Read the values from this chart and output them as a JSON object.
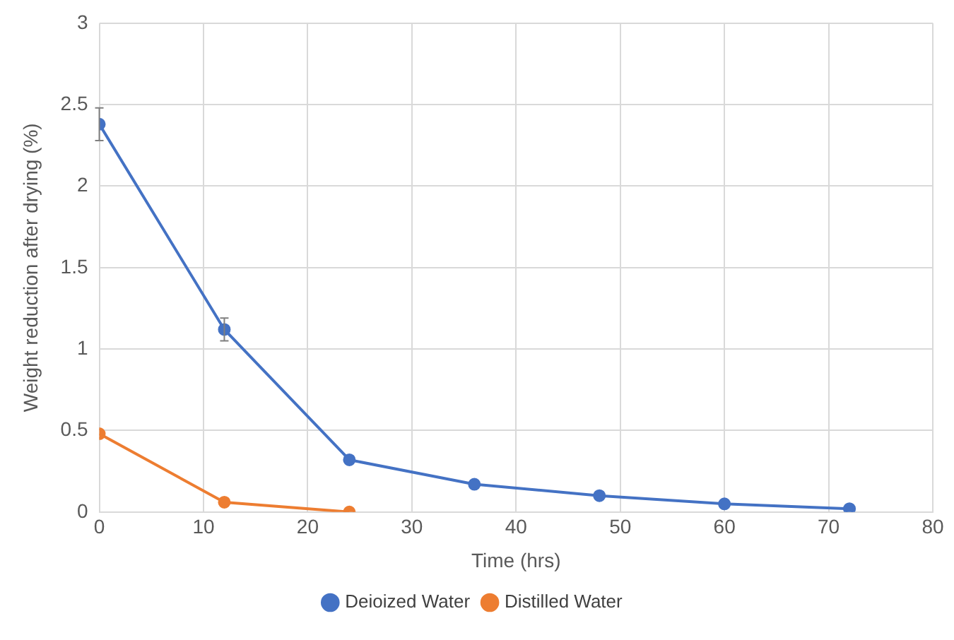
{
  "chart_data": {
    "type": "line",
    "xlabel": "Time (hrs)",
    "ylabel": "Weight reduction after drying (%)",
    "x": [
      0,
      12,
      24,
      36,
      48,
      60,
      72
    ],
    "series": [
      {
        "name": "Deioized Water",
        "color": "#4472c4",
        "values": [
          2.38,
          1.12,
          0.32,
          0.17,
          0.1,
          0.05,
          0.02
        ],
        "errors": [
          0.1,
          0.07,
          null,
          null,
          null,
          null,
          null
        ]
      },
      {
        "name": "Distilled Water",
        "color": "#ed7d31",
        "values": [
          0.48,
          0.06,
          0
        ],
        "x": [
          0,
          12,
          24
        ]
      }
    ],
    "xlim": [
      0,
      80
    ],
    "xticks": [
      0,
      10,
      20,
      30,
      40,
      50,
      60,
      70,
      80
    ],
    "ylim": [
      0,
      3
    ],
    "yticks": [
      0,
      0.5,
      1,
      1.5,
      2,
      2.5,
      3
    ],
    "grid": true,
    "legend": "bottom",
    "marker": "circle",
    "line_style": "solid"
  }
}
